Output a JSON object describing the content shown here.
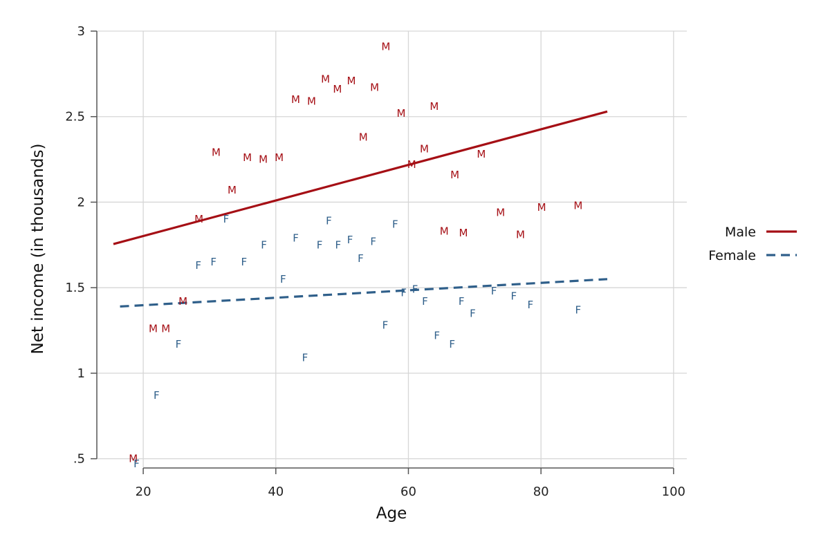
{
  "chart_data": {
    "type": "scatter",
    "xlabel": "Age",
    "ylabel": "Net income (in thousands)",
    "xlim": [
      13,
      102
    ],
    "ylim": [
      0.45,
      3.0
    ],
    "x_ticks": [
      20,
      40,
      60,
      80,
      100
    ],
    "x_tick_labels": [
      "20",
      "40",
      "60",
      "80",
      "100"
    ],
    "y_ticks": [
      0.5,
      1,
      1.5,
      2,
      2.5,
      3
    ],
    "y_tick_labels": [
      ".5",
      "1",
      "1.5",
      "2",
      "2.5",
      "3"
    ],
    "grid": true,
    "legend_position": "right",
    "series": [
      {
        "name": "Male",
        "marker_label": "M",
        "color": "#a50f15",
        "points": [
          [
            18.5,
            0.5
          ],
          [
            21.5,
            1.26
          ],
          [
            23.4,
            1.26
          ],
          [
            26,
            1.42
          ],
          [
            28.4,
            1.9
          ],
          [
            31,
            2.29
          ],
          [
            33.4,
            2.07
          ],
          [
            35.7,
            2.26
          ],
          [
            38.1,
            2.25
          ],
          [
            40.5,
            2.26
          ],
          [
            43,
            2.6
          ],
          [
            45.4,
            2.59
          ],
          [
            47.5,
            2.72
          ],
          [
            49.3,
            2.66
          ],
          [
            51.4,
            2.71
          ],
          [
            53.2,
            2.38
          ],
          [
            54.9,
            2.67
          ],
          [
            56.6,
            2.91
          ],
          [
            58.9,
            2.52
          ],
          [
            60.5,
            2.22
          ],
          [
            62.4,
            2.31
          ],
          [
            63.9,
            2.56
          ],
          [
            65.4,
            1.83
          ],
          [
            67,
            2.16
          ],
          [
            68.3,
            1.82
          ],
          [
            71,
            2.28
          ],
          [
            73.9,
            1.94
          ],
          [
            76.9,
            1.81
          ],
          [
            80.1,
            1.97
          ],
          [
            85.6,
            1.98
          ]
        ],
        "fit": {
          "line_style": "solid",
          "x": [
            15.5,
            90
          ],
          "y": [
            1.755,
            2.53
          ]
        }
      },
      {
        "name": "Female",
        "marker_label": "F",
        "color": "#2f5f8a",
        "points": [
          [
            19,
            0.47
          ],
          [
            22,
            0.87
          ],
          [
            25.3,
            1.17
          ],
          [
            28.3,
            1.63
          ],
          [
            30.6,
            1.65
          ],
          [
            32.5,
            1.9
          ],
          [
            35.2,
            1.65
          ],
          [
            38.2,
            1.75
          ],
          [
            41.1,
            1.55
          ],
          [
            43,
            1.79
          ],
          [
            44.4,
            1.09
          ],
          [
            46.6,
            1.75
          ],
          [
            48,
            1.89
          ],
          [
            49.4,
            1.75
          ],
          [
            51.2,
            1.78
          ],
          [
            52.8,
            1.67
          ],
          [
            54.7,
            1.77
          ],
          [
            56.5,
            1.28
          ],
          [
            58,
            1.87
          ],
          [
            59.3,
            1.47
          ],
          [
            61,
            1.49
          ],
          [
            62.5,
            1.42
          ],
          [
            64.3,
            1.22
          ],
          [
            66.6,
            1.17
          ],
          [
            68,
            1.42
          ],
          [
            69.7,
            1.35
          ],
          [
            72.9,
            1.48
          ],
          [
            75.9,
            1.45
          ],
          [
            78.4,
            1.4
          ],
          [
            85.6,
            1.37
          ]
        ],
        "fit": {
          "line_style": "dashed",
          "x": [
            16.5,
            90
          ],
          "y": [
            1.39,
            1.55
          ]
        }
      }
    ]
  }
}
